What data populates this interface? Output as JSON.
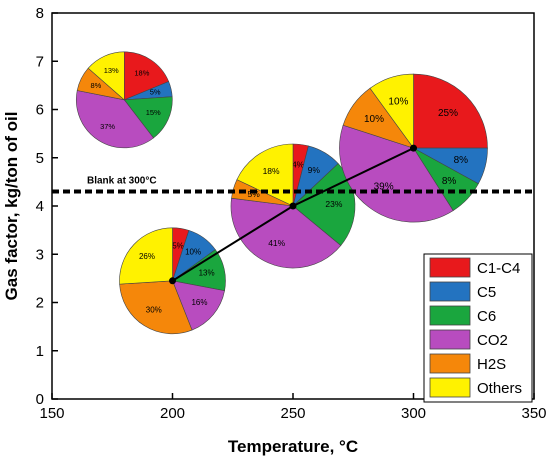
{
  "chart_data": {
    "type": "scatter",
    "xlabel": "Temperature, °C",
    "ylabel": "Gas factor, kg/ton of oil",
    "xlim": [
      150,
      350
    ],
    "ylim": [
      0,
      8
    ],
    "xticks": [
      150,
      200,
      250,
      300,
      350
    ],
    "yticks": [
      0,
      1,
      2,
      3,
      4,
      5,
      6,
      7,
      8
    ],
    "grid": false,
    "legend_placement": "bottom-right",
    "series": [
      {
        "x": [
          200,
          250,
          300
        ],
        "y": [
          2.45,
          4.0,
          5.2
        ]
      }
    ],
    "reference_line": {
      "y": 4.3,
      "label": "Blank at 300°C",
      "style": "dashed"
    },
    "components": [
      {
        "name": "C1-C4",
        "color": "#e8191c"
      },
      {
        "name": "C5",
        "color": "#2373c0"
      },
      {
        "name": "C6",
        "color": "#1aa63e"
      },
      {
        "name": "CO2",
        "color": "#b84cbf"
      },
      {
        "name": "H2S",
        "color": "#f5870a"
      },
      {
        "name": "Others",
        "color": "#fff200"
      }
    ],
    "pies": [
      {
        "label": "Blank at 300°C",
        "center": [
          180,
          6.2
        ],
        "size": "small",
        "slices": [
          {
            "component": "C1-C4",
            "value": 18,
            "label": "18%"
          },
          {
            "component": "C5",
            "value": 5,
            "label": "5%"
          },
          {
            "component": "C6",
            "value": 15,
            "label": "15%"
          },
          {
            "component": "CO2",
            "value": 37,
            "label": "37%"
          },
          {
            "component": "H2S",
            "value": 8,
            "label": "8%"
          },
          {
            "component": "Others",
            "value": 13,
            "label": "13%"
          }
        ]
      },
      {
        "label": "200",
        "center": [
          200,
          2.45
        ],
        "size": "medium",
        "slices": [
          {
            "component": "C1-C4",
            "value": 5,
            "label": "5%"
          },
          {
            "component": "C5",
            "value": 10,
            "label": "10%"
          },
          {
            "component": "C6",
            "value": 13,
            "label": "13%"
          },
          {
            "component": "CO2",
            "value": 16,
            "label": "16%"
          },
          {
            "component": "H2S",
            "value": 30,
            "label": "30%"
          },
          {
            "component": "Others",
            "value": 26,
            "label": "26%"
          }
        ]
      },
      {
        "label": "250",
        "center": [
          250,
          4.0
        ],
        "size": "large",
        "slices": [
          {
            "component": "C1-C4",
            "value": 4,
            "label": "4%"
          },
          {
            "component": "C5",
            "value": 9,
            "label": "9%"
          },
          {
            "component": "C6",
            "value": 23,
            "label": "23%"
          },
          {
            "component": "CO2",
            "value": 41,
            "label": "41%"
          },
          {
            "component": "H2S",
            "value": 5,
            "label": "5%"
          },
          {
            "component": "Others",
            "value": 18,
            "label": "18%"
          }
        ]
      },
      {
        "label": "300",
        "center": [
          300,
          5.2
        ],
        "size": "xlarge",
        "slices": [
          {
            "component": "C1-C4",
            "value": 25,
            "label": "25%"
          },
          {
            "component": "C5",
            "value": 8,
            "label": "8%"
          },
          {
            "component": "C6",
            "value": 8,
            "label": "8%"
          },
          {
            "component": "CO2",
            "value": 39,
            "label": "39%"
          },
          {
            "component": "H2S",
            "value": 10,
            "label": "10%"
          },
          {
            "component": "Others",
            "value": 10,
            "label": "10%"
          }
        ]
      }
    ]
  }
}
